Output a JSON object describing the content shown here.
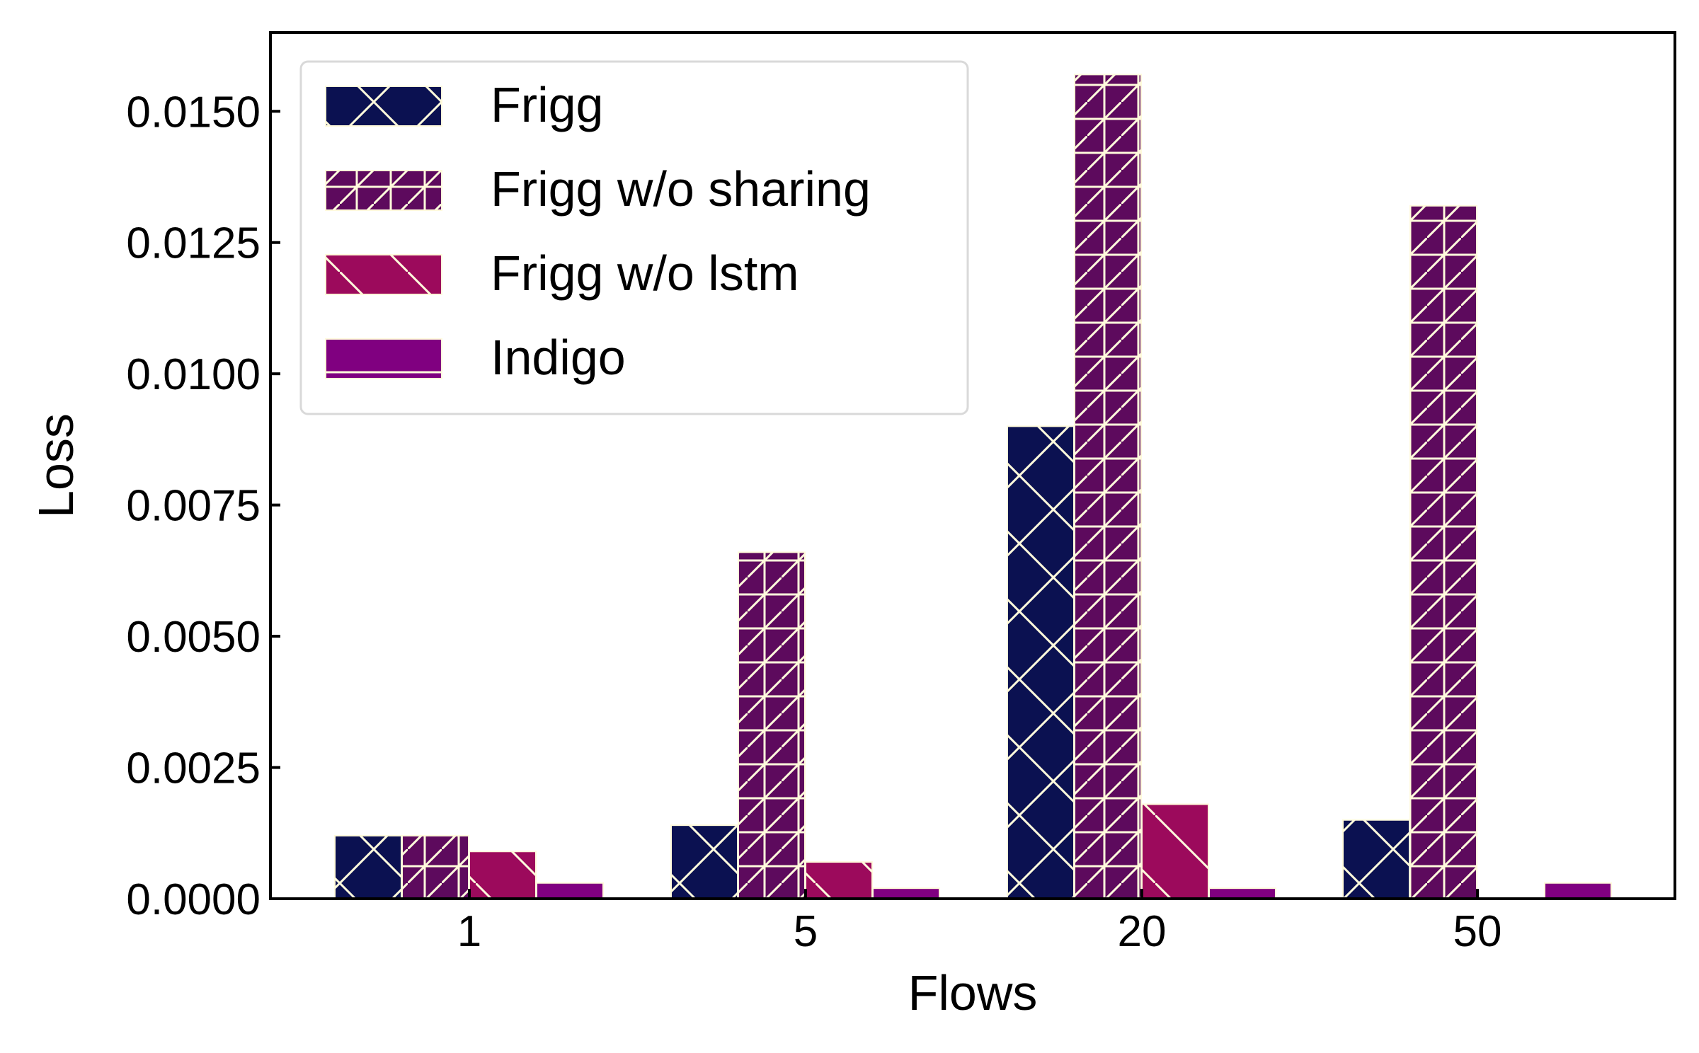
{
  "chart_data": {
    "type": "bar",
    "xlabel": "Flows",
    "ylabel": "Loss",
    "categories": [
      "1",
      "5",
      "20",
      "50"
    ],
    "ylim": [
      0,
      0.0165
    ],
    "yticks": [
      "0.0000",
      "0.0025",
      "0.0050",
      "0.0075",
      "0.0100",
      "0.0125",
      "0.0150"
    ],
    "grid": false,
    "legend_position": "top-left",
    "series": [
      {
        "name": "Frigg",
        "values": [
          0.0012,
          0.0014,
          0.009,
          0.0015
        ],
        "color": "#0b1151",
        "hatch": "x"
      },
      {
        "name": "Frigg w/o sharing",
        "values": [
          0.0012,
          0.0066,
          0.0157,
          0.0132
        ],
        "color": "#5d0a5d",
        "hatch": "+/"
      },
      {
        "name": "Frigg w/o lstm",
        "values": [
          0.0009,
          0.0007,
          0.0018,
          0.0
        ],
        "color": "#9c0a5c",
        "hatch": "\\"
      },
      {
        "name": "Indigo",
        "values": [
          0.0003,
          0.0002,
          0.0002,
          0.0003
        ],
        "color": "#800080",
        "hatch": "-"
      }
    ],
    "hatch_color": "#fffadc"
  }
}
